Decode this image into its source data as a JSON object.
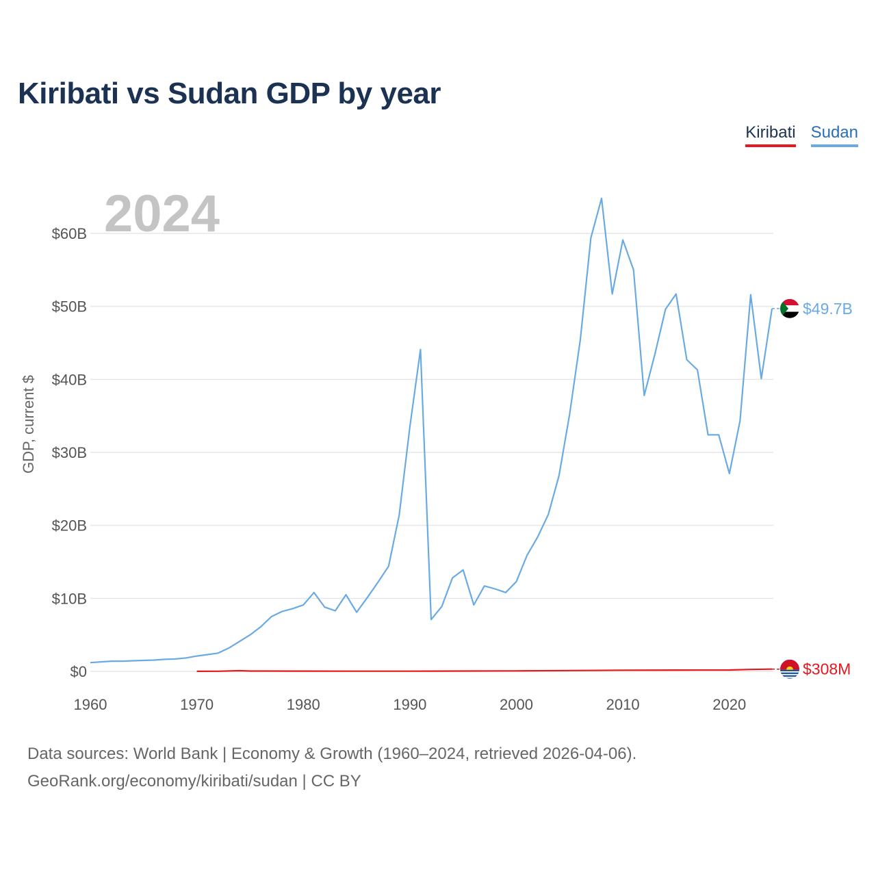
{
  "title": "Kiribati vs Sudan GDP by year",
  "legend": {
    "kiribati": "Kiribati",
    "sudan": "Sudan"
  },
  "footer": {
    "line1": "Data sources: World Bank | Economy & Growth (1960–2024, retrieved 2026-04-06).",
    "line2": "GeoRank.org/economy/kiribati/sudan | CC BY"
  },
  "colors": {
    "kiribati": "#e8161e",
    "sudan": "#6aaae4",
    "grid": "#e6e6e6",
    "year": "#c4c4c4"
  },
  "chart_data": {
    "type": "line",
    "title": "Kiribati vs Sudan GDP by year",
    "xlabel": "",
    "ylabel": "GDP, current $",
    "year_label": "2024",
    "xlim": [
      1960,
      2024
    ],
    "ylim": [
      0,
      65
    ],
    "y_ticks": [
      {
        "value": 0,
        "label": "$0"
      },
      {
        "value": 10,
        "label": "$10B"
      },
      {
        "value": 20,
        "label": "$20B"
      },
      {
        "value": 30,
        "label": "$30B"
      },
      {
        "value": 40,
        "label": "$40B"
      },
      {
        "value": 50,
        "label": "$50B"
      },
      {
        "value": 60,
        "label": "$60B"
      }
    ],
    "x_ticks": [
      {
        "value": 1960,
        "label": "1960"
      },
      {
        "value": 1970,
        "label": "1970"
      },
      {
        "value": 1980,
        "label": "1980"
      },
      {
        "value": 1990,
        "label": "1990"
      },
      {
        "value": 2000,
        "label": "2000"
      },
      {
        "value": 2010,
        "label": "2010"
      },
      {
        "value": 2020,
        "label": "2020"
      }
    ],
    "series": [
      {
        "name": "Sudan",
        "color": "#6aaae4",
        "end_label": "$49.7B",
        "x": [
          1960,
          1961,
          1962,
          1963,
          1964,
          1965,
          1966,
          1967,
          1968,
          1969,
          1970,
          1971,
          1972,
          1973,
          1974,
          1975,
          1976,
          1977,
          1978,
          1979,
          1980,
          1981,
          1982,
          1983,
          1984,
          1985,
          1986,
          1987,
          1988,
          1989,
          1990,
          1991,
          1992,
          1993,
          1994,
          1995,
          1996,
          1997,
          1998,
          1999,
          2000,
          2001,
          2002,
          2003,
          2004,
          2005,
          2006,
          2007,
          2008,
          2009,
          2010,
          2011,
          2012,
          2013,
          2014,
          2015,
          2016,
          2017,
          2018,
          2019,
          2020,
          2021,
          2022,
          2023,
          2024
        ],
        "values": [
          1.2,
          1.3,
          1.4,
          1.4,
          1.45,
          1.5,
          1.55,
          1.65,
          1.7,
          1.85,
          2.1,
          2.3,
          2.5,
          3.2,
          4.1,
          5.0,
          6.1,
          7.5,
          8.2,
          8.6,
          9.1,
          10.8,
          8.8,
          8.3,
          10.5,
          8.1,
          10.1,
          12.2,
          14.4,
          21.4,
          33.5,
          44.1,
          7.1,
          8.9,
          12.8,
          13.9,
          9.1,
          11.7,
          11.3,
          10.8,
          12.3,
          15.9,
          18.4,
          21.5,
          26.8,
          35.2,
          45.4,
          59.4,
          64.8,
          51.7,
          59.1,
          55.0,
          37.8,
          43.4,
          49.6,
          51.7,
          42.7,
          41.3,
          32.4,
          32.4,
          27.1,
          34.3,
          51.6,
          40.1,
          49.7
        ]
      },
      {
        "name": "Kiribati",
        "color": "#e8161e",
        "end_label": "$308M",
        "x": [
          1970,
          1972,
          1974,
          1975,
          1980,
          1985,
          1990,
          1995,
          2000,
          2005,
          2010,
          2015,
          2020,
          2022,
          2024
        ],
        "values": [
          0.014,
          0.02,
          0.09,
          0.05,
          0.04,
          0.03,
          0.03,
          0.05,
          0.07,
          0.11,
          0.16,
          0.18,
          0.19,
          0.26,
          0.308
        ]
      }
    ]
  }
}
